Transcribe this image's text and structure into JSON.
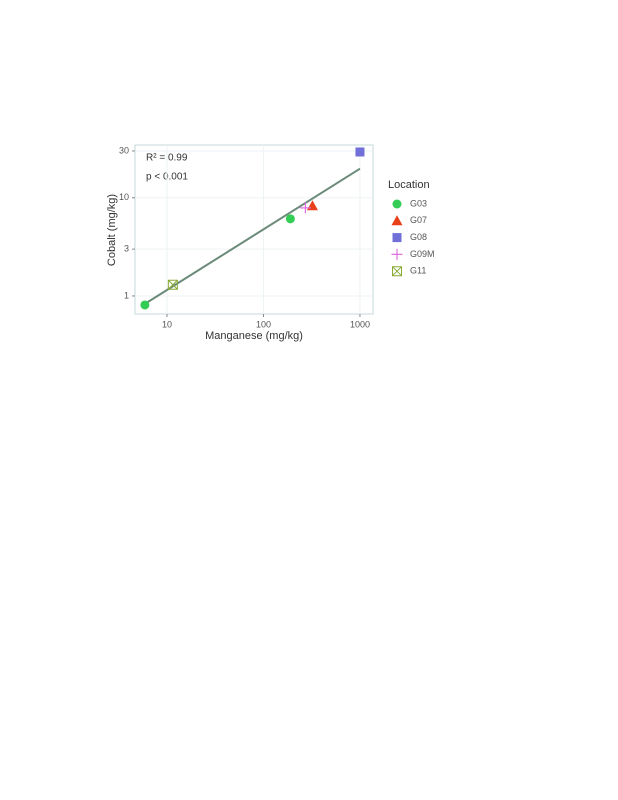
{
  "chart_data": {
    "type": "scatter",
    "x_label": "Manganese (mg/kg)",
    "y_label": "Cobalt (mg/kg)",
    "annotations": [
      "R² = 0.99",
      "p < 0.001"
    ],
    "legend_title": "Location",
    "legend": "right",
    "xscale": "log",
    "yscale": "log",
    "grid": true,
    "xlim": [
      4.66,
      1365
    ],
    "ylim": [
      0.655,
      34.5
    ],
    "xticks": [
      10,
      100,
      1000
    ],
    "yticks": [
      1,
      3,
      10,
      30
    ],
    "series": [
      {
        "name": "G03",
        "color": "#33cc55",
        "marker": "circle",
        "x": [
          5.9,
          190
        ],
        "values": [
          0.81,
          6.1
        ]
      },
      {
        "name": "G07",
        "color": "#e8401a",
        "marker": "triangle",
        "x": [
          322
        ],
        "values": [
          8.3
        ]
      },
      {
        "name": "G08",
        "color": "#7070d8",
        "marker": "square",
        "x": [
          1000
        ],
        "values": [
          29.3
        ]
      },
      {
        "name": "G09M",
        "color": "#e070e0",
        "marker": "plus",
        "x": [
          272
        ],
        "values": [
          7.9
        ]
      },
      {
        "name": "G11",
        "color": "#88aa33",
        "marker": "square-x",
        "x": [
          11.5
        ],
        "values": [
          1.3
        ]
      }
    ],
    "fit": {
      "color": "#6b8a7a",
      "x": [
        5.9,
        1000
      ],
      "values": [
        0.83,
        19.8
      ]
    }
  }
}
